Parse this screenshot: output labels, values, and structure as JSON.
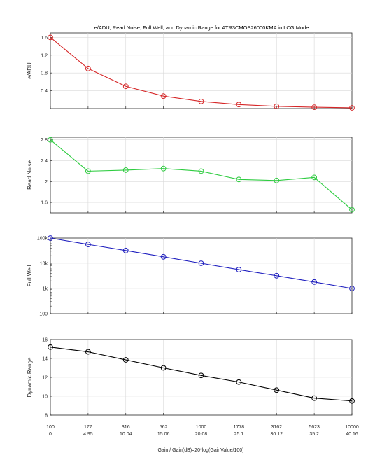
{
  "chart_data": {
    "title": "e/ADU, Read Noise, Full Well, and Dynamic Range for ATR3CMOS26000KMA in LCG Mode",
    "xlabel": "Gain / Gain(dB)=20*log(GainValue/100)",
    "x_gain": [
      "100",
      "177",
      "316",
      "562",
      "1000",
      "1778",
      "3162",
      "5623",
      "10000"
    ],
    "x_db": [
      "0",
      "4.95",
      "10.04",
      "15.06",
      "20.08",
      "25.1",
      "30.12",
      "35.2",
      "40.16"
    ],
    "panels": [
      {
        "type": "line",
        "ylabel": "e/ADU",
        "color": "#d62728",
        "scale": "linear",
        "ylim": [
          0,
          1.7
        ],
        "yticks": [
          0.4,
          0.8,
          1.2,
          1.6
        ],
        "ytick_labels": [
          "0.4",
          "0.8",
          "1.2",
          "1.6"
        ],
        "values": [
          1.6,
          0.9,
          0.5,
          0.28,
          0.16,
          0.09,
          0.05,
          0.03,
          0.016
        ]
      },
      {
        "type": "line",
        "ylabel": "Read Noise",
        "color": "#2ecc40",
        "scale": "linear",
        "ylim": [
          1.4,
          2.85
        ],
        "yticks": [
          1.6,
          2,
          2.4,
          2.8
        ],
        "ytick_labels": [
          "1.6",
          "2",
          "2.4",
          "2.8"
        ],
        "values": [
          2.8,
          2.2,
          2.22,
          2.25,
          2.2,
          2.04,
          2.02,
          2.08,
          1.46
        ]
      },
      {
        "type": "line",
        "ylabel": "Full Well",
        "color": "#1f1fbf",
        "scale": "log",
        "ylim": [
          100,
          100000
        ],
        "yticks": [
          100,
          1000,
          10000,
          100000
        ],
        "ytick_labels": [
          "100",
          "1k",
          "10k",
          "100k"
        ],
        "values": [
          100000,
          56000,
          32000,
          18000,
          10000,
          5600,
          3200,
          1800,
          1000
        ]
      },
      {
        "type": "line",
        "ylabel": "Dynamic Range",
        "color": "#000000",
        "scale": "linear",
        "ylim": [
          8,
          16
        ],
        "yticks": [
          8,
          10,
          12,
          14,
          16
        ],
        "ytick_labels": [
          "8",
          "10",
          "12",
          "14",
          "16"
        ],
        "values": [
          15.2,
          14.7,
          13.85,
          13.0,
          12.2,
          11.5,
          10.65,
          9.8,
          9.5
        ]
      }
    ],
    "grid": true
  }
}
